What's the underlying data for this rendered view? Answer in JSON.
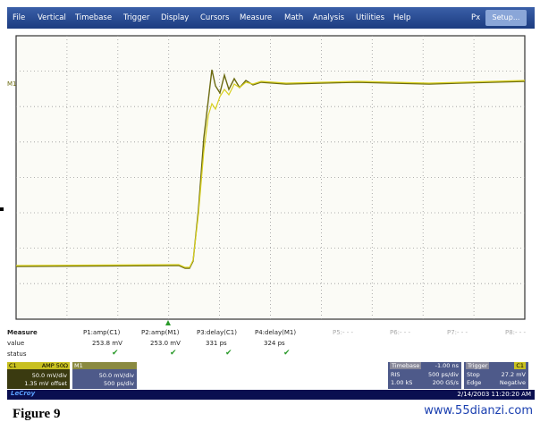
{
  "menu": [
    "File",
    "Vertical",
    "Timebase",
    "Trigger",
    "Display",
    "Cursors",
    "Measure",
    "Math",
    "Analysis",
    "Utilities",
    "Help"
  ],
  "menu_right": {
    "px": "Px",
    "setup": "Setup..."
  },
  "trace_label": "M1",
  "measure": {
    "title": "Measure",
    "headers": [
      "P1:amp(C1)",
      "P2:amp(M1)",
      "P3:delay(C1)",
      "P4:delay(M1)",
      "P5:- - -",
      "P6:- - -",
      "P7:- - -",
      "P8:- - -"
    ],
    "row_labels": [
      "value",
      "status"
    ],
    "values": [
      "253.8 mV",
      "253.0 mV",
      "331 ps",
      "324 ps"
    ]
  },
  "channels": [
    {
      "name": "C1",
      "tag": "AMP 50Ω",
      "scale": "50.0 mV/div",
      "detail": "1.35 mV offset"
    },
    {
      "name": "M1",
      "scale": "50.0 mV/div",
      "detail": "500 ps/div"
    }
  ],
  "timebase": {
    "title": "Timebase",
    "delay": "-1.00 ns",
    "mode": "RIS",
    "scale": "500 ps/div",
    "samples": "1.00 kS",
    "rate": "200 GS/s"
  },
  "trigger": {
    "title": "Trigger",
    "source": "C1",
    "mode": "Stop",
    "level": "27.2 mV",
    "type": "Edge",
    "slope": "Negative"
  },
  "status_bar": {
    "brand": "LeCroy",
    "timestamp": "2/14/2003 11:20:20 AM"
  },
  "caption": "Figure 9",
  "watermark": "www.55dianzi.com"
}
